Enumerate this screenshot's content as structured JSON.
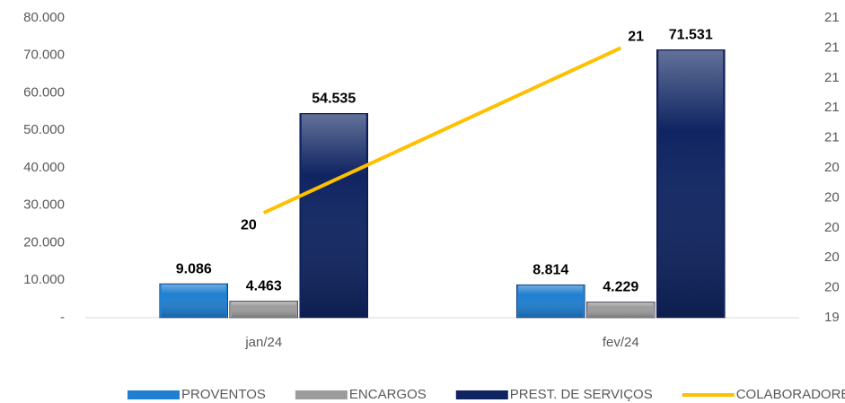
{
  "chart_data": {
    "type": "bar",
    "categories": [
      "jan/24",
      "fev/24"
    ],
    "series": [
      {
        "name": "PROVENTOS",
        "color": "#1f7fd0",
        "values": [
          9086,
          8814
        ],
        "value_labels": [
          "9.086",
          "8.814"
        ]
      },
      {
        "name": "ENCARGOS",
        "color": "#9c9c9c",
        "values": [
          4463,
          4229
        ],
        "value_labels": [
          "4.463",
          "4.229"
        ]
      },
      {
        "name": "PREST. DE SERVIÇOS",
        "color": "#0f2461",
        "values": [
          54535,
          71531
        ],
        "value_labels": [
          "54.535",
          "71.531"
        ]
      },
      {
        "name": "COLABORADORES",
        "color": "#ffc000",
        "type": "line",
        "axis": "y2",
        "values": [
          20.1,
          21.2
        ],
        "value_labels": [
          "20",
          "21"
        ]
      }
    ],
    "ylim": [
      0,
      80000
    ],
    "yticks": [
      {
        "value": 0,
        "label": "-"
      },
      {
        "value": 10000,
        "label": "10.000"
      },
      {
        "value": 20000,
        "label": "20.000"
      },
      {
        "value": 30000,
        "label": "30.000"
      },
      {
        "value": 40000,
        "label": "40.000"
      },
      {
        "value": 50000,
        "label": "50.000"
      },
      {
        "value": 60000,
        "label": "60.000"
      },
      {
        "value": 70000,
        "label": "70.000"
      },
      {
        "value": 80000,
        "label": "80.000"
      }
    ],
    "y2lim": [
      19.4,
      21.4
    ],
    "y2ticks": [
      {
        "value": 19.4,
        "label": "19"
      },
      {
        "value": 19.6,
        "label": "20"
      },
      {
        "value": 19.8,
        "label": "20"
      },
      {
        "value": 20.0,
        "label": "20"
      },
      {
        "value": 20.2,
        "label": "20"
      },
      {
        "value": 20.4,
        "label": "20"
      },
      {
        "value": 20.6,
        "label": "21"
      },
      {
        "value": 20.8,
        "label": "21"
      },
      {
        "value": 21.0,
        "label": "21"
      },
      {
        "value": 21.2,
        "label": "21"
      },
      {
        "value": 21.4,
        "label": "21"
      }
    ],
    "legend": "bottom"
  }
}
